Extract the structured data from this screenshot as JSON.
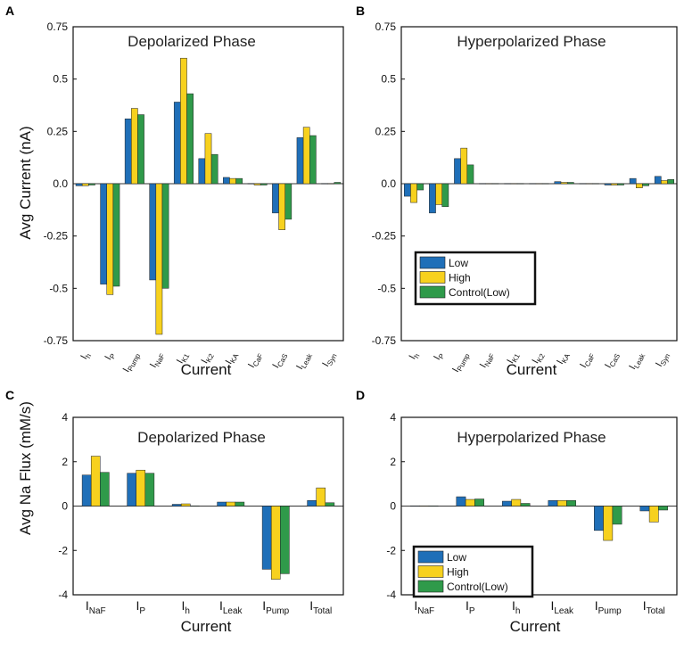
{
  "colors": {
    "Low": "#1f6fb8",
    "High": "#f7d11e",
    "Control(Low)": "#2f9a4a",
    "edge": "#222222",
    "frame": "#111111"
  },
  "legend": [
    "Low",
    "High",
    "Control(Low)"
  ],
  "chart_data": [
    {
      "panel": "A",
      "type": "bar",
      "title": "Depolarized Phase",
      "xlabel": "Current",
      "ylabel": "Avg Current (nA)",
      "ylim": [
        -0.75,
        0.75
      ],
      "yticks": [
        -0.75,
        -0.5,
        -0.25,
        0,
        0.25,
        0.5,
        0.75
      ],
      "ytick_labels": [
        "-0.75",
        "-0.5",
        "-0.25",
        "0.0",
        "0.25",
        "0.5",
        "0.75"
      ],
      "categories": [
        {
          "base": "I",
          "sub": "h"
        },
        {
          "base": "I",
          "sub": "P"
        },
        {
          "base": "I",
          "sub": "Pump"
        },
        {
          "base": "I",
          "sub": "NaF"
        },
        {
          "base": "I",
          "sub": "K1"
        },
        {
          "base": "I",
          "sub": "K2"
        },
        {
          "base": "I",
          "sub": "KA"
        },
        {
          "base": "I",
          "sub": "CaF"
        },
        {
          "base": "I",
          "sub": "CaS"
        },
        {
          "base": "I",
          "sub": "Leak"
        },
        {
          "base": "I",
          "sub": "Syn"
        }
      ],
      "series": [
        {
          "name": "Low",
          "values": [
            -0.01,
            -0.48,
            0.31,
            -0.46,
            0.39,
            0.12,
            0.03,
            0.0,
            -0.14,
            0.22,
            0.0
          ]
        },
        {
          "name": "High",
          "values": [
            -0.01,
            -0.53,
            0.36,
            -0.72,
            0.6,
            0.24,
            0.025,
            -0.005,
            -0.22,
            0.27,
            0.0
          ]
        },
        {
          "name": "Control(Low)",
          "values": [
            -0.005,
            -0.49,
            0.33,
            -0.5,
            0.43,
            0.14,
            0.025,
            -0.005,
            -0.17,
            0.23,
            0.005
          ]
        }
      ],
      "legend": "none",
      "rotated_labels": true
    },
    {
      "panel": "B",
      "type": "bar",
      "title": "Hyperpolarized Phase",
      "xlabel": "Current",
      "ylabel": "",
      "ylim": [
        -0.75,
        0.75
      ],
      "yticks": [
        -0.75,
        -0.5,
        -0.25,
        0,
        0.25,
        0.5,
        0.75
      ],
      "ytick_labels": [
        "-0.75",
        "-0.5",
        "-0.25",
        "0.0",
        "0.25",
        "0.5",
        "0.75"
      ],
      "categories": [
        {
          "base": "I",
          "sub": "h"
        },
        {
          "base": "I",
          "sub": "P"
        },
        {
          "base": "I",
          "sub": "Pump"
        },
        {
          "base": "I",
          "sub": "NaF"
        },
        {
          "base": "I",
          "sub": "K1"
        },
        {
          "base": "I",
          "sub": "K2"
        },
        {
          "base": "I",
          "sub": "KA"
        },
        {
          "base": "I",
          "sub": "CaF"
        },
        {
          "base": "I",
          "sub": "CaS"
        },
        {
          "base": "I",
          "sub": "Leak"
        },
        {
          "base": "I",
          "sub": "Syn"
        }
      ],
      "series": [
        {
          "name": "Low",
          "values": [
            -0.06,
            -0.14,
            0.12,
            0.0,
            0.0,
            0.0,
            0.01,
            0.0,
            -0.005,
            0.025,
            0.035
          ]
        },
        {
          "name": "High",
          "values": [
            -0.09,
            -0.1,
            0.17,
            0.0,
            0.0,
            0.0,
            0.005,
            0.0,
            -0.005,
            -0.02,
            0.015
          ]
        },
        {
          "name": "Control(Low)",
          "values": [
            -0.03,
            -0.11,
            0.09,
            0.0,
            0.0,
            0.0,
            0.005,
            0.0,
            -0.005,
            -0.01,
            0.02
          ]
        }
      ],
      "legend": "lower-left",
      "rotated_labels": true
    },
    {
      "panel": "C",
      "type": "bar",
      "title": "Depolarized Phase",
      "xlabel": "Current",
      "ylabel": "Avg Na Flux (mM/s)",
      "ylim": [
        -4,
        4
      ],
      "yticks": [
        -4,
        -2,
        0,
        2,
        4
      ],
      "ytick_labels": [
        "-4",
        "-2",
        "0",
        "2",
        "4"
      ],
      "categories": [
        {
          "base": "I",
          "sub": "NaF"
        },
        {
          "base": "I",
          "sub": "P"
        },
        {
          "base": "I",
          "sub": "h"
        },
        {
          "base": "I",
          "sub": "Leak"
        },
        {
          "base": "I",
          "sub": "Pump"
        },
        {
          "base": "I",
          "sub": "Total"
        }
      ],
      "series": [
        {
          "name": "Low",
          "values": [
            1.4,
            1.48,
            0.08,
            0.18,
            -2.85,
            0.25
          ]
        },
        {
          "name": "High",
          "values": [
            2.25,
            1.62,
            0.1,
            0.18,
            -3.3,
            0.82
          ]
        },
        {
          "name": "Control(Low)",
          "values": [
            1.52,
            1.48,
            0.0,
            0.18,
            -3.05,
            0.15
          ]
        }
      ],
      "legend": "none",
      "rotated_labels": false
    },
    {
      "panel": "D",
      "type": "bar",
      "title": "Hyperpolarized Phase",
      "xlabel": "Current",
      "ylabel": "",
      "ylim": [
        -4,
        4
      ],
      "yticks": [
        -4,
        -2,
        0,
        2,
        4
      ],
      "ytick_labels": [
        "-4",
        "-2",
        "0",
        "2",
        "4"
      ],
      "categories": [
        {
          "base": "I",
          "sub": "NaF"
        },
        {
          "base": "I",
          "sub": "P"
        },
        {
          "base": "I",
          "sub": "h"
        },
        {
          "base": "I",
          "sub": "Leak"
        },
        {
          "base": "I",
          "sub": "Pump"
        },
        {
          "base": "I",
          "sub": "Total"
        }
      ],
      "series": [
        {
          "name": "Low",
          "values": [
            0.0,
            0.42,
            0.22,
            0.25,
            -1.1,
            -0.22
          ]
        },
        {
          "name": "High",
          "values": [
            0.0,
            0.3,
            0.3,
            0.25,
            -1.55,
            -0.72
          ]
        },
        {
          "name": "Control(Low)",
          "values": [
            0.0,
            0.32,
            0.12,
            0.25,
            -0.82,
            -0.18
          ]
        }
      ],
      "legend": "lower-left",
      "rotated_labels": false
    }
  ]
}
